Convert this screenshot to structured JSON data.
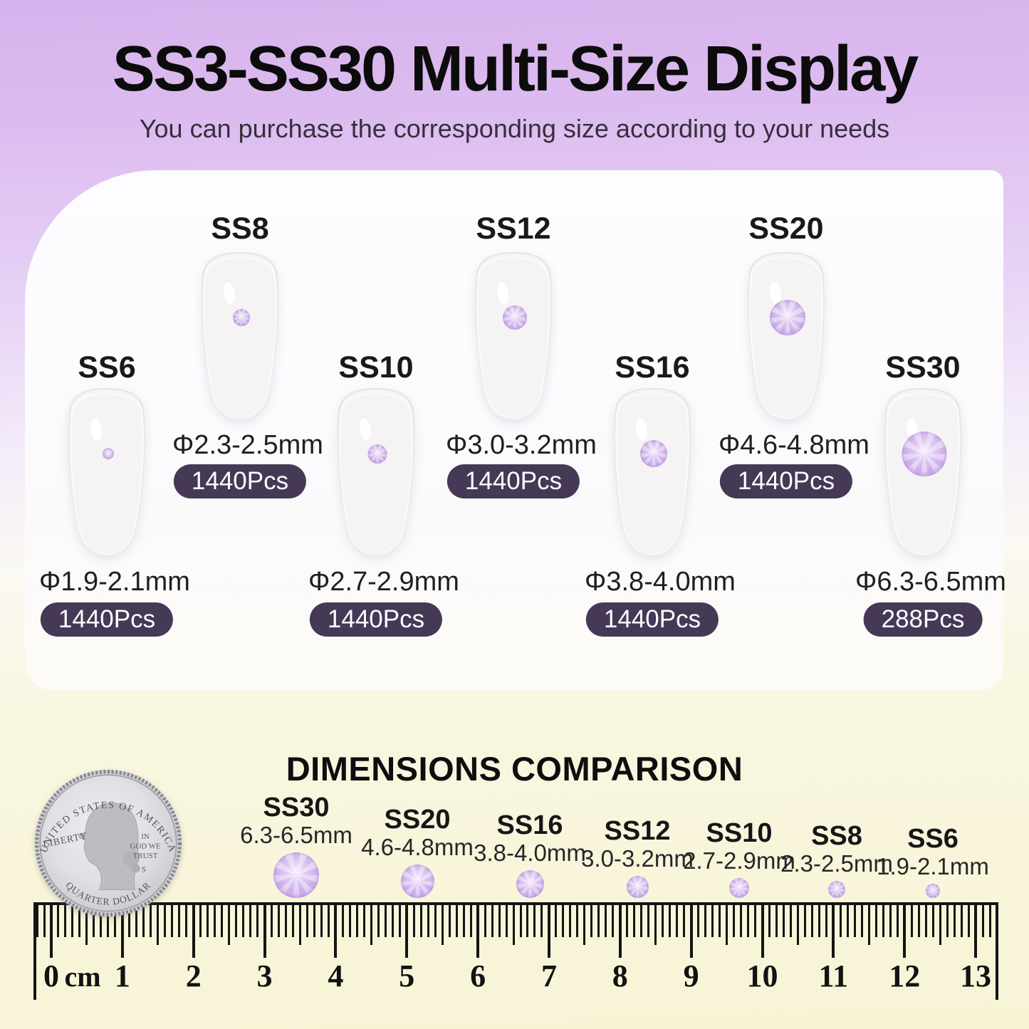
{
  "title": "SS3-SS30 Multi-Size Display",
  "subtitle": "You can purchase the corresponding size according to your needs",
  "display": {
    "sizes": [
      {
        "name": "SS6",
        "diameter": "Φ1.9-2.1mm",
        "count": "1440Pcs"
      },
      {
        "name": "SS8",
        "diameter": "Φ2.3-2.5mm",
        "count": "1440Pcs"
      },
      {
        "name": "SS10",
        "diameter": "Φ2.7-2.9mm",
        "count": "1440Pcs"
      },
      {
        "name": "SS12",
        "diameter": "Φ3.0-3.2mm",
        "count": "1440Pcs"
      },
      {
        "name": "SS16",
        "diameter": "Φ3.8-4.0mm",
        "count": "1440Pcs"
      },
      {
        "name": "SS20",
        "diameter": "Φ4.6-4.8mm",
        "count": "1440Pcs"
      },
      {
        "name": "SS30",
        "diameter": "Φ6.3-6.5mm",
        "count": "288Pcs"
      }
    ]
  },
  "comparison": {
    "heading": "DIMENSIONS COMPARISON",
    "items": [
      {
        "name": "SS30",
        "range": "6.3-6.5mm",
        "mm": 6.4
      },
      {
        "name": "SS20",
        "range": "4.6-4.8mm",
        "mm": 4.7
      },
      {
        "name": "SS16",
        "range": "3.8-4.0mm",
        "mm": 3.9
      },
      {
        "name": "SS12",
        "range": "3.0-3.2mm",
        "mm": 3.1
      },
      {
        "name": "SS10",
        "range": "2.7-2.9mm",
        "mm": 2.8
      },
      {
        "name": "SS8",
        "range": "2.3-2.5mm",
        "mm": 2.4
      },
      {
        "name": "SS6",
        "range": "1.9-2.1mm",
        "mm": 2.0
      }
    ]
  },
  "coin": {
    "top_text": "UNITED STATES OF AMERICA",
    "left_text": "LIBERTY",
    "right_text_line1": "IN",
    "right_text_line2": "GOD WE",
    "right_text_line3": "TRUST",
    "mint_mark": "S",
    "bottom_text": "QUARTER DOLLAR"
  },
  "ruler": {
    "unit_label": "cm",
    "start": 0,
    "end": 13
  },
  "colors": {
    "badge": "#453956",
    "stone": "#ccafe8",
    "background_top": "#d7b4ed",
    "background_bottom": "#f8f5da"
  }
}
